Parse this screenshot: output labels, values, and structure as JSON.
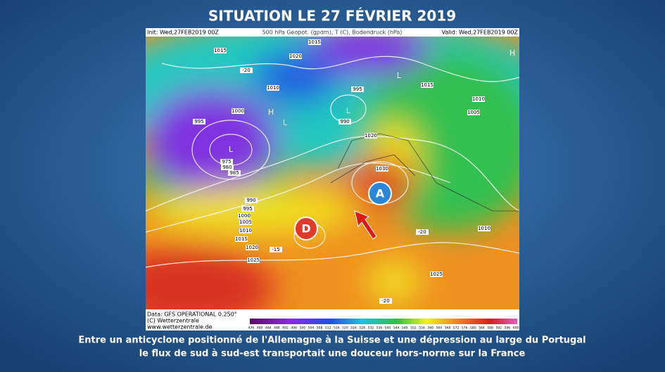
{
  "title": "SITUATION LE 27 FÉVRIER 2019",
  "map": {
    "header": {
      "init": "Init: Wed,27FEB2019 00Z",
      "params": "500 hPa Geopot. (gpdm), T (C), Bodendruck (hPa)",
      "valid": "Valid: Wed,27FEB2019 00Z"
    },
    "footer": {
      "data": "Data: GFS OPERATIONAL 0.250°",
      "copyright": "(C) Wetterzentrale",
      "url": "www.wetterzentrale.de"
    },
    "markers": {
      "low": "D",
      "high": "A"
    },
    "centers": [
      "L",
      "L",
      "L",
      "H",
      "H",
      "L"
    ],
    "isobars": [
      "1015",
      "1020",
      "1015",
      "1010",
      "1000",
      "995",
      "995",
      "990",
      "1030",
      "1020",
      "1025",
      "1010",
      "1005",
      "1010",
      "1015",
      "1025",
      "1020",
      "1015",
      "1010",
      "1005",
      "1000",
      "995",
      "990",
      "985",
      "980",
      "975",
      "-20",
      "-15",
      "-20",
      "-20"
    ],
    "scale": [
      476,
      480,
      484,
      488,
      492,
      496,
      500,
      504,
      508,
      512,
      516,
      520,
      524,
      528,
      532,
      536,
      540,
      544,
      548,
      552,
      556,
      560,
      564,
      568,
      572,
      576,
      580,
      584,
      588,
      592,
      596,
      600
    ]
  },
  "caption": [
    "Entre un anticyclone positionné de l'Allemagne à la Suisse et une dépression au large du Portugal",
    "le flux de sud à sud-est transportait une douceur hors-norme sur la France"
  ]
}
